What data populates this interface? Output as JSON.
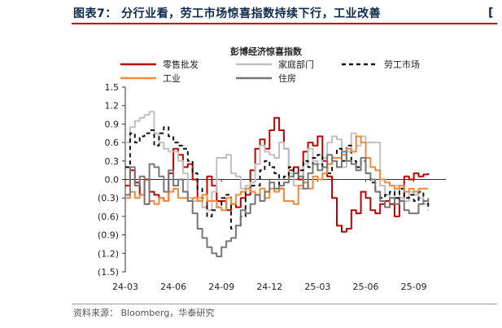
{
  "figure": {
    "title": "图表7： 分行业看，劳工市场惊喜指数持续下行，工业改善",
    "corner_mark": "[",
    "source": "资料来源： Bloomberg，华泰研究"
  },
  "chart_data": {
    "type": "line",
    "title": "彭博经济惊喜指数",
    "xlabel": "",
    "ylabel": "",
    "ylim": [
      -1.5,
      1.5
    ],
    "yticks": [
      1.5,
      1.2,
      0.9,
      0.6,
      0.3,
      0.0,
      -0.3,
      -0.6,
      -0.9,
      -1.2,
      -1.5
    ],
    "ytick_labels": [
      "1.5",
      "1.2",
      "0.9",
      "0.6",
      "0.3",
      "0.0",
      "(0.3)",
      "(0.6)",
      "(0.9)",
      "(1.2)",
      "(1.5)"
    ],
    "xlim": [
      0,
      20
    ],
    "xticks": [
      0,
      3,
      6,
      9,
      12,
      15,
      18
    ],
    "xtick_labels": [
      "24-03",
      "24-06",
      "24-09",
      "24-12",
      "25-03",
      "25-06",
      "25-09"
    ],
    "legend_position": "top",
    "series": [
      {
        "name": "零售批发",
        "color": "#c00000",
        "dash": "solid",
        "width": 2,
        "x": [
          0,
          0.3,
          0.6,
          0.9,
          1.2,
          1.5,
          1.8,
          2.1,
          2.4,
          2.7,
          3.0,
          3.3,
          3.6,
          3.9,
          4.2,
          4.5,
          4.8,
          5.1,
          5.4,
          5.7,
          6.0,
          6.3,
          6.6,
          6.9,
          7.2,
          7.5,
          7.8,
          8.1,
          8.4,
          8.7,
          9.0,
          9.3,
          9.6,
          9.9,
          10.2,
          10.5,
          10.8,
          11.1,
          11.4,
          11.7,
          12.0,
          12.3,
          12.6,
          12.9,
          13.2,
          13.5,
          13.8,
          14.1,
          14.4,
          14.7,
          15.0,
          15.3,
          15.6,
          15.9,
          16.2,
          16.5,
          16.8,
          17.1,
          17.4,
          17.7,
          18.0,
          18.3,
          18.6,
          18.9
        ],
        "y": [
          -0.1,
          0.15,
          -0.05,
          -0.25,
          0.0,
          -0.2,
          -0.25,
          -0.3,
          -0.35,
          0.1,
          0.5,
          0.4,
          0.2,
          0.25,
          0.0,
          -0.3,
          -0.45,
          0.05,
          -0.1,
          -0.35,
          -0.35,
          -0.5,
          -0.4,
          -0.45,
          -0.3,
          -0.25,
          0.15,
          0.5,
          0.65,
          0.5,
          0.8,
          1.0,
          0.8,
          0.5,
          0.15,
          0.2,
          0.0,
          0.45,
          0.6,
          0.55,
          0.7,
          0.3,
          0.05,
          -0.3,
          -0.75,
          -0.85,
          -0.8,
          -0.5,
          -0.55,
          -0.2,
          -0.3,
          -0.5,
          -0.55,
          -0.4,
          -0.35,
          -0.4,
          -0.6,
          -0.3,
          0.05,
          0.0,
          0.1,
          0.05,
          0.08,
          0.1
        ]
      },
      {
        "name": "家庭部门",
        "color": "#c0c0c0",
        "dash": "solid",
        "width": 2,
        "x": [
          0,
          0.3,
          0.6,
          0.9,
          1.2,
          1.5,
          1.8,
          2.1,
          2.4,
          2.7,
          3.0,
          3.3,
          3.6,
          3.9,
          4.2,
          4.5,
          4.8,
          5.1,
          5.4,
          5.7,
          6.0,
          6.3,
          6.6,
          6.9,
          7.2,
          7.5,
          7.8,
          8.1,
          8.4,
          8.7,
          9.0,
          9.3,
          9.6,
          9.9,
          10.2,
          10.5,
          10.8,
          11.1,
          11.4,
          11.7,
          12.0,
          12.3,
          12.6,
          12.9,
          13.2,
          13.5,
          13.8,
          14.1,
          14.4,
          14.7,
          15.0,
          15.3,
          15.6,
          15.9,
          16.2,
          16.5,
          16.8,
          17.1,
          17.4,
          17.7,
          18.0,
          18.3,
          18.6,
          18.9
        ],
        "y": [
          0.6,
          0.85,
          0.95,
          1.0,
          1.05,
          1.1,
          0.75,
          0.6,
          0.5,
          0.45,
          0.45,
          0.3,
          0.1,
          -0.3,
          -0.35,
          -0.3,
          -0.45,
          -0.5,
          -0.2,
          0.35,
          0.35,
          0.4,
          0.1,
          0.05,
          -0.15,
          -0.1,
          -0.05,
          0.25,
          0.55,
          0.45,
          0.4,
          0.35,
          0.6,
          0.5,
          0.1,
          -0.1,
          -0.15,
          0.25,
          0.5,
          0.3,
          0.25,
          0.35,
          0.6,
          0.7,
          0.65,
          0.2,
          0.45,
          0.75,
          0.55,
          0.7,
          0.6,
          0.6,
          0.6,
          -0.1,
          -0.25,
          -0.3,
          -0.1,
          -0.3,
          -0.35,
          -0.2,
          -0.25,
          -0.3,
          -0.4,
          -0.45
        ]
      },
      {
        "name": "劳工市场",
        "color": "#111111",
        "dash": "dashed",
        "width": 2,
        "x": [
          0,
          0.3,
          0.6,
          0.9,
          1.2,
          1.5,
          1.8,
          2.1,
          2.4,
          2.7,
          3.0,
          3.3,
          3.6,
          3.9,
          4.2,
          4.5,
          4.8,
          5.1,
          5.4,
          5.7,
          6.0,
          6.3,
          6.6,
          6.9,
          7.2,
          7.5,
          7.8,
          8.1,
          8.4,
          8.7,
          9.0,
          9.3,
          9.6,
          9.9,
          10.2,
          10.5,
          10.8,
          11.1,
          11.4,
          11.7,
          12.0,
          12.3,
          12.6,
          12.9,
          13.2,
          13.5,
          13.8,
          14.1,
          14.4,
          14.7,
          15.0,
          15.3,
          15.6,
          15.9,
          16.2,
          16.5,
          16.8,
          17.1,
          17.4,
          17.7,
          18.0,
          18.3,
          18.6,
          18.9
        ],
        "y": [
          0.2,
          0.75,
          0.6,
          0.7,
          0.75,
          0.8,
          0.55,
          0.75,
          0.85,
          0.7,
          0.6,
          0.55,
          0.5,
          0.3,
          0.1,
          -0.15,
          -0.3,
          -0.6,
          -0.5,
          -0.45,
          -0.3,
          -0.25,
          -0.8,
          -0.75,
          -0.6,
          -0.2,
          -0.1,
          -0.1,
          0.15,
          0.3,
          0.2,
          0.1,
          -0.15,
          0.05,
          0.2,
          0.1,
          0.15,
          0.3,
          0.2,
          0.35,
          0.4,
          0.2,
          0.1,
          0.35,
          0.5,
          0.3,
          0.55,
          0.3,
          0.2,
          0.3,
          0.1,
          -0.05,
          -0.2,
          -0.3,
          -0.25,
          -0.2,
          -0.3,
          -0.15,
          -0.3,
          -0.25,
          -0.35,
          -0.2,
          -0.35,
          -0.5
        ]
      },
      {
        "name": "工业",
        "color": "#f4873a",
        "dash": "solid",
        "width": 2,
        "x": [
          0,
          0.3,
          0.6,
          0.9,
          1.2,
          1.5,
          1.8,
          2.1,
          2.4,
          2.7,
          3.0,
          3.3,
          3.6,
          3.9,
          4.2,
          4.5,
          4.8,
          5.1,
          5.4,
          5.7,
          6.0,
          6.3,
          6.6,
          6.9,
          7.2,
          7.5,
          7.8,
          8.1,
          8.4,
          8.7,
          9.0,
          9.3,
          9.6,
          9.9,
          10.2,
          10.5,
          10.8,
          11.1,
          11.4,
          11.7,
          12.0,
          12.3,
          12.6,
          12.9,
          13.2,
          13.5,
          13.8,
          14.1,
          14.4,
          14.7,
          15.0,
          15.3,
          15.6,
          15.9,
          16.2,
          16.5,
          16.8,
          17.1,
          17.4,
          17.7,
          18.0,
          18.3,
          18.6,
          18.9
        ],
        "y": [
          -0.3,
          -0.2,
          -0.3,
          -0.25,
          -0.4,
          -0.35,
          -0.4,
          -0.3,
          -0.35,
          -0.2,
          -0.15,
          -0.3,
          -0.3,
          -0.35,
          -0.3,
          -0.35,
          -0.25,
          -0.35,
          -0.35,
          -0.45,
          -0.5,
          -0.3,
          -0.4,
          -0.25,
          -0.2,
          -0.15,
          -0.2,
          -0.25,
          -0.15,
          -0.3,
          -0.15,
          -0.2,
          -0.15,
          -0.35,
          -0.35,
          -0.4,
          -0.1,
          -0.05,
          -0.15,
          0.05,
          0.0,
          0.1,
          0.25,
          0.35,
          0.35,
          0.4,
          0.5,
          0.45,
          0.7,
          0.6,
          0.35,
          0.2,
          0.15,
          0.0,
          -0.05,
          -0.1,
          -0.15,
          -0.1,
          -0.2,
          -0.15,
          -0.2,
          -0.15,
          -0.15,
          -0.15
        ]
      },
      {
        "name": "住房",
        "color": "#767676",
        "dash": "solid",
        "width": 2,
        "x": [
          0,
          0.3,
          0.6,
          0.9,
          1.2,
          1.5,
          1.8,
          2.1,
          2.4,
          2.7,
          3.0,
          3.3,
          3.6,
          3.9,
          4.2,
          4.5,
          4.8,
          5.1,
          5.4,
          5.7,
          6.0,
          6.3,
          6.6,
          6.9,
          7.2,
          7.5,
          7.8,
          8.1,
          8.4,
          8.7,
          9.0,
          9.3,
          9.6,
          9.9,
          10.2,
          10.5,
          10.8,
          11.1,
          11.4,
          11.7,
          12.0,
          12.3,
          12.6,
          12.9,
          13.2,
          13.5,
          13.8,
          14.1,
          14.4,
          14.7,
          15.0,
          15.3,
          15.6,
          15.9,
          16.2,
          16.5,
          16.8,
          17.1,
          17.4,
          17.7,
          18.0,
          18.3,
          18.6,
          18.9
        ],
        "y": [
          -0.25,
          0.2,
          -0.1,
          0.05,
          -0.4,
          0.25,
          0.2,
          0.05,
          -0.2,
          0.15,
          -0.1,
          0.0,
          -0.2,
          -0.35,
          -0.55,
          -0.8,
          -0.95,
          -1.1,
          -1.2,
          -1.25,
          -1.1,
          -1.0,
          -0.95,
          -0.75,
          -0.5,
          -0.55,
          -0.4,
          -0.25,
          -0.35,
          -0.2,
          -0.05,
          -0.15,
          -0.1,
          -0.05,
          0.05,
          0.1,
          0.05,
          -0.15,
          0.1,
          0.25,
          0.15,
          0.2,
          0.4,
          0.3,
          0.2,
          0.45,
          0.3,
          0.25,
          0.15,
          0.35,
          0.1,
          0.0,
          -0.2,
          -0.35,
          -0.45,
          -0.3,
          -0.4,
          -0.35,
          -0.5,
          -0.55,
          -0.55,
          -0.4,
          -0.35,
          -0.3
        ]
      }
    ]
  }
}
